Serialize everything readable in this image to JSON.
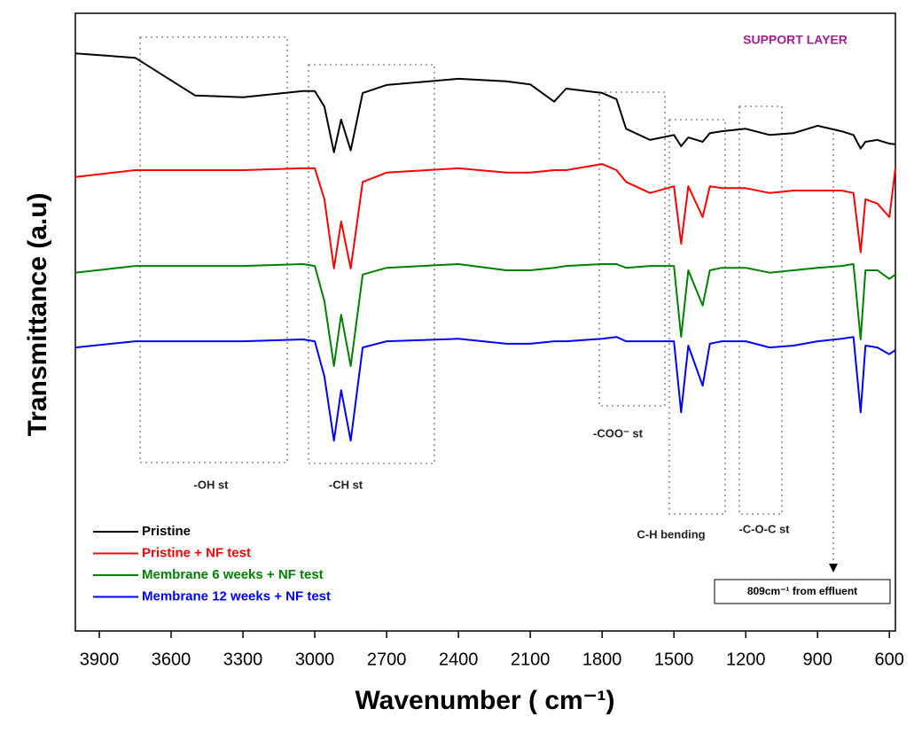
{
  "chart_data": {
    "type": "line",
    "x_label": "Wavenumber ( cm⁻¹)",
    "y_label": "Transmittance (a.u)",
    "xlim": [
      4000,
      575
    ],
    "ylim": [
      0,
      100
    ],
    "xticks": [
      3900,
      3600,
      3300,
      3000,
      2700,
      2400,
      2100,
      1800,
      1500,
      1200,
      900,
      600
    ],
    "x": [
      4000,
      3750,
      3500,
      3300,
      3050,
      3000,
      2960,
      2920,
      2890,
      2850,
      2800,
      2700,
      2400,
      2200,
      2100,
      2000,
      1950,
      1800,
      1740,
      1700,
      1600,
      1500,
      1470,
      1440,
      1380,
      1350,
      1300,
      1200,
      1100,
      1000,
      900,
      800,
      750,
      720,
      700,
      650,
      600,
      575
    ],
    "series": [
      {
        "name": "Pristine",
        "color": "#000000",
        "values": [
          93.5,
          92.8,
          86.7,
          86.4,
          87.4,
          87.4,
          84.9,
          77.5,
          82.8,
          77.8,
          87.1,
          88.4,
          89.4,
          89.0,
          88.5,
          85.7,
          87.8,
          87.1,
          86.1,
          81.3,
          79.5,
          80.3,
          78.5,
          79.9,
          79.2,
          80.6,
          80.9,
          81.3,
          80.3,
          80.6,
          81.8,
          80.9,
          80.3,
          78.1,
          79.2,
          79.5,
          78.9,
          78.8
        ]
      },
      {
        "name": "Pristine + NF test",
        "color": "#ff0000",
        "values": [
          73.5,
          74.6,
          74.6,
          74.6,
          74.9,
          74.9,
          69.9,
          58.7,
          66.3,
          58.7,
          72.7,
          74.2,
          74.9,
          74.2,
          74.2,
          74.6,
          74.6,
          75.6,
          74.6,
          72.7,
          70.9,
          72.0,
          62.7,
          72.0,
          67.0,
          72.0,
          71.7,
          71.7,
          70.9,
          71.3,
          71.3,
          71.3,
          70.9,
          61.3,
          69.9,
          69.2,
          67.0,
          74.9
        ]
      },
      {
        "name": "Membrane 6 weeks + NF test",
        "color": "#008000",
        "values": [
          58.0,
          59.1,
          59.1,
          59.1,
          59.4,
          59.1,
          53.4,
          42.9,
          51.2,
          42.9,
          57.7,
          58.8,
          59.4,
          58.4,
          58.4,
          58.8,
          59.1,
          59.4,
          59.4,
          58.8,
          59.1,
          59.1,
          47.6,
          58.4,
          52.7,
          58.4,
          58.8,
          58.8,
          58.0,
          58.4,
          58.8,
          59.1,
          59.4,
          47.2,
          58.4,
          58.4,
          57.0,
          57.7
        ]
      },
      {
        "name": "Membrane 12 weeks + NF test",
        "color": "#0000ff",
        "values": [
          45.9,
          46.9,
          46.9,
          46.9,
          47.2,
          46.9,
          41.2,
          30.8,
          39.0,
          30.8,
          45.9,
          46.9,
          47.3,
          46.5,
          46.5,
          46.9,
          46.9,
          47.3,
          47.6,
          46.9,
          46.9,
          46.9,
          35.4,
          46.2,
          39.7,
          46.5,
          46.9,
          46.9,
          45.9,
          46.2,
          46.9,
          47.3,
          47.6,
          35.4,
          46.2,
          45.9,
          44.8,
          45.5
        ]
      }
    ],
    "annotations": [
      "SUPPORT LAYER",
      "-OH st",
      "-CH st",
      "-COO⁻ st",
      "C-H bending",
      "-C-O-C st",
      "809cm⁻¹ from effluent"
    ]
  }
}
